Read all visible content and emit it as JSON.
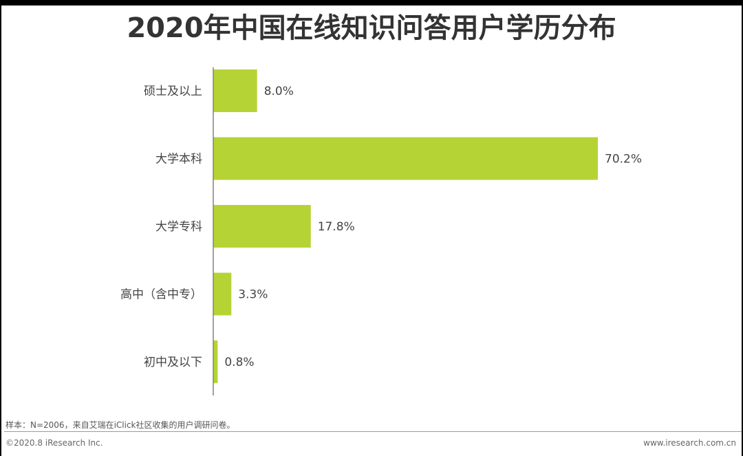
{
  "title": "2020年中国在线知识问答用户学历分布",
  "note": "样本：N=2006，来自艾瑞在iClick社区收集的用户调研问卷。",
  "footer": {
    "copyright": "©2020.8 iResearch Inc.",
    "site": "www.iresearch.com.cn"
  },
  "colors": {
    "bar": "#b5d334",
    "axis": "#808080",
    "background": "#ffffff"
  },
  "chart_data": {
    "type": "bar",
    "orientation": "horizontal",
    "title": "2020年中国在线知识问答用户学历分布",
    "categories": [
      "硕士及以上",
      "大学本科",
      "大学专科",
      "高中（含中专）",
      "初中及以下"
    ],
    "values": [
      8.0,
      70.2,
      17.8,
      3.3,
      0.8
    ],
    "data_labels": [
      "8.0%",
      "70.2%",
      "17.8%",
      "3.3%",
      "0.8%"
    ],
    "unit": "%",
    "xlim": [
      0,
      70.2
    ],
    "grid": false,
    "legend": "none"
  }
}
